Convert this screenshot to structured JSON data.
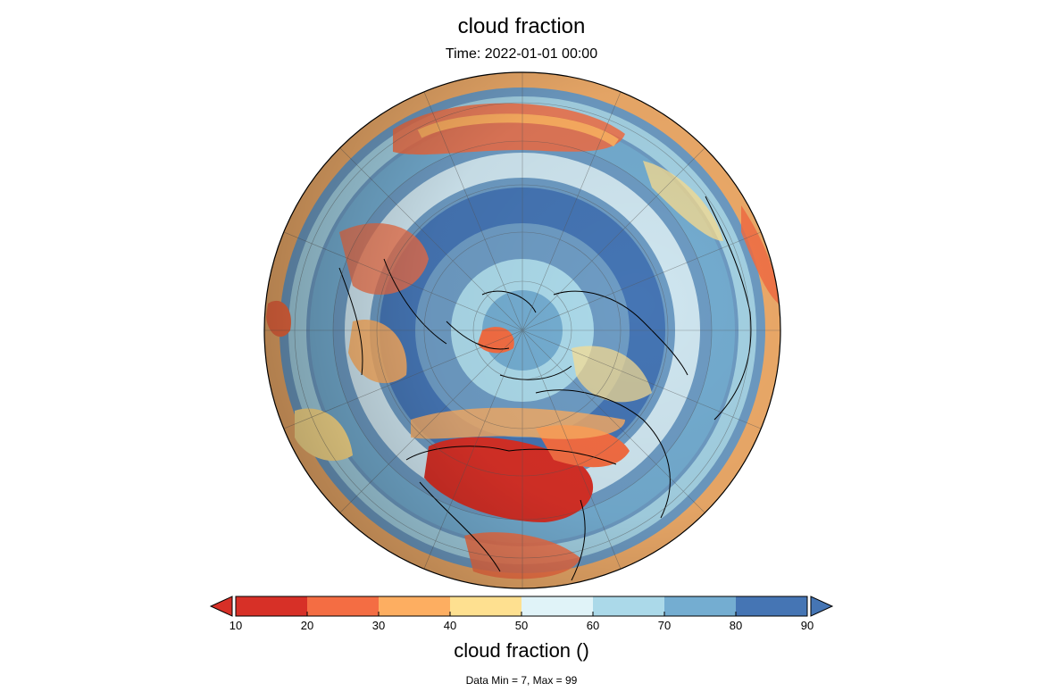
{
  "map": {
    "title": "cloud fraction",
    "subtitle": "Time: 2022-01-01 00:00",
    "projection": "orthographic-north-polar",
    "variable": "cloud fraction"
  },
  "colorbar": {
    "label": "cloud fraction ()",
    "min": 10,
    "max": 90,
    "step": 10,
    "extend": "both",
    "ticks": [
      "10",
      "20",
      "30",
      "40",
      "50",
      "60",
      "70",
      "80",
      "90"
    ],
    "colors": [
      "#d73027",
      "#f46d43",
      "#fdae61",
      "#fee090",
      "#e0f3f8",
      "#abd9e9",
      "#74add1",
      "#4575b4"
    ],
    "under_color": "#d73027",
    "over_color": "#4575b4"
  },
  "stats": {
    "text": "Data Min = 7, Max = 99"
  }
}
